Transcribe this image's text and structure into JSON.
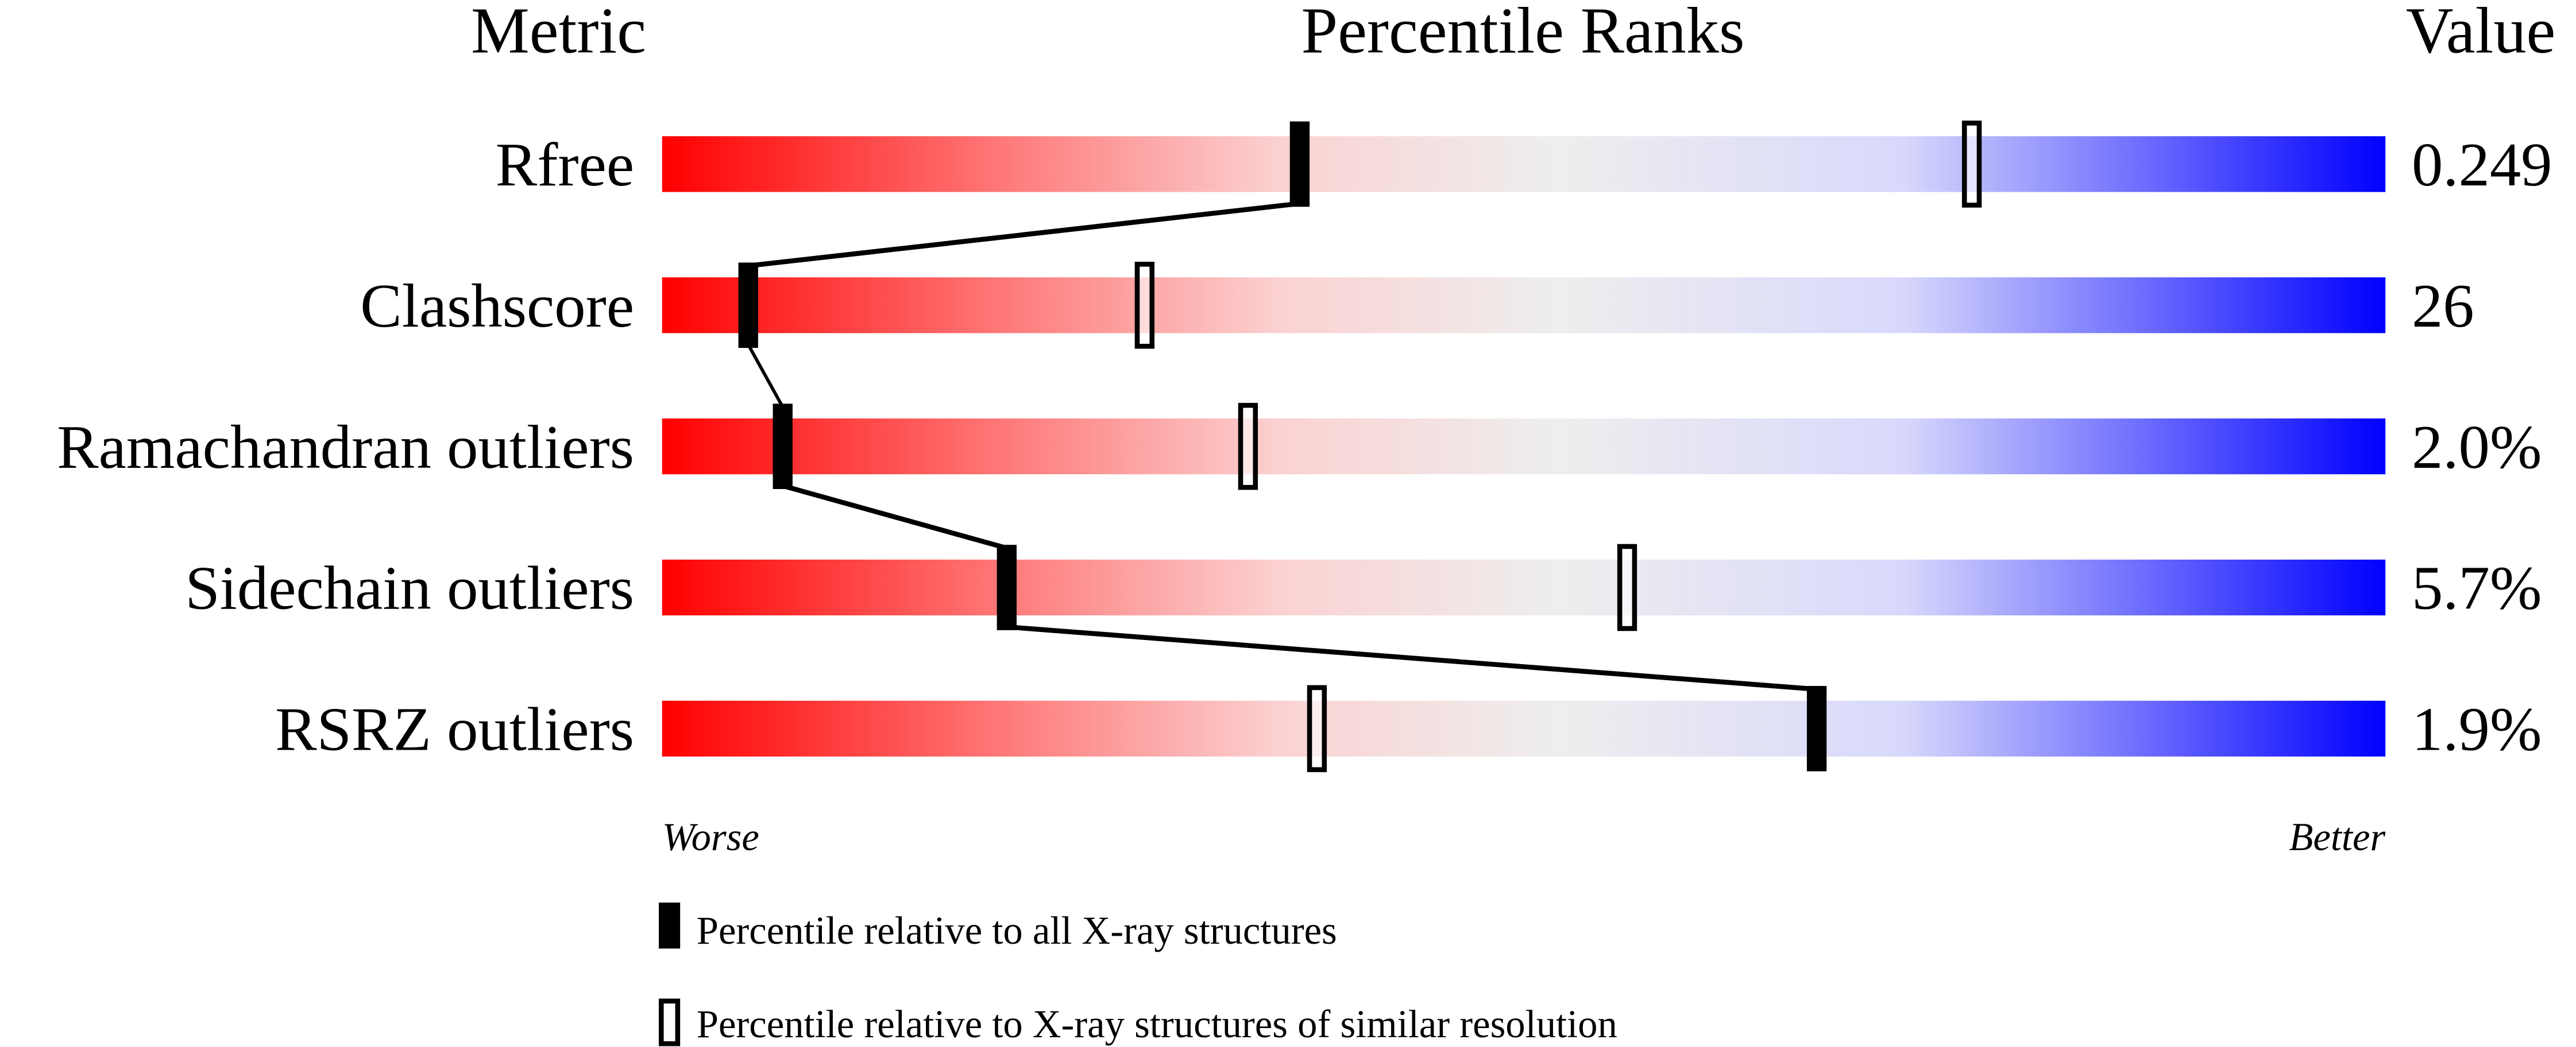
{
  "chart_data": {
    "type": "bar",
    "headers": {
      "metric": "Metric",
      "ranks": "Percentile Ranks",
      "value": "Value"
    },
    "xlim": [
      0,
      100
    ],
    "rows": [
      {
        "metric": "Rfree",
        "value": "0.249",
        "percentile_all": 37,
        "percentile_similar": 76
      },
      {
        "metric": "Clashscore",
        "value": "26",
        "percentile_all": 5,
        "percentile_similar": 28
      },
      {
        "metric": "Ramachandran outliers",
        "value": "2.0%",
        "percentile_all": 7,
        "percentile_similar": 34
      },
      {
        "metric": "Sidechain outliers",
        "value": "5.7%",
        "percentile_all": 20,
        "percentile_similar": 56
      },
      {
        "metric": "RSRZ outliers",
        "value": "1.9%",
        "percentile_all": 67,
        "percentile_similar": 38
      }
    ],
    "scale_labels": {
      "left": "Worse",
      "right": "Better"
    },
    "legend": [
      {
        "marker": "filled",
        "label": "Percentile relative to all X-ray structures"
      },
      {
        "marker": "hollow",
        "label": "Percentile relative to X-ray structures of similar resolution"
      }
    ],
    "colors": {
      "worse": "#ff0000",
      "mid": "#eeeeee",
      "better": "#0000ff"
    }
  }
}
